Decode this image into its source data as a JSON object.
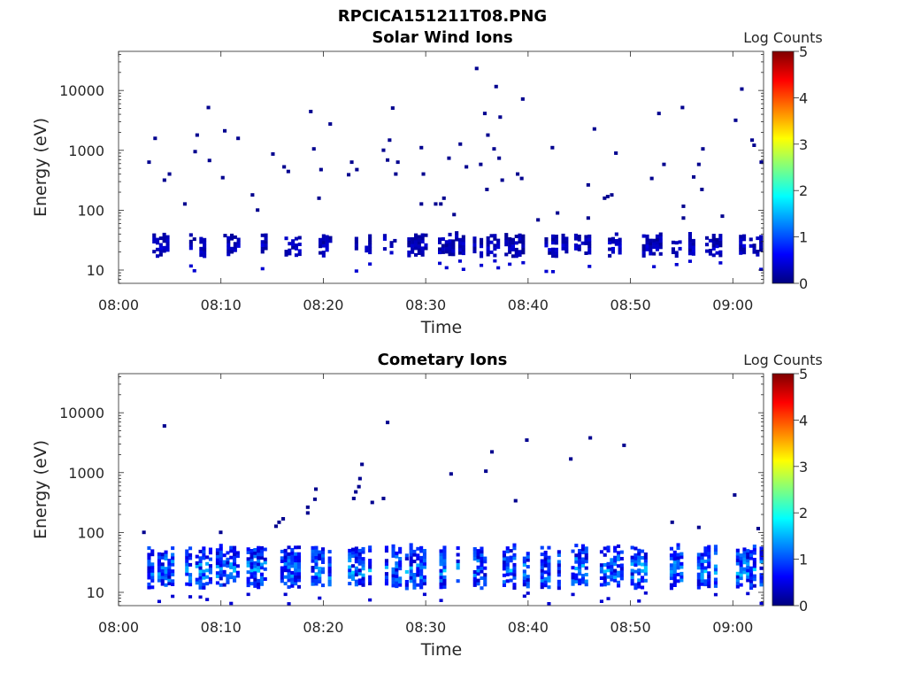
{
  "figure_title": "RPCICA151211T08.PNG",
  "colors": {
    "colormap": [
      "#00007f",
      "#0000ff",
      "#007fff",
      "#00ffff",
      "#7fff7f",
      "#ffff00",
      "#ff7f00",
      "#ff0000",
      "#7f0000"
    ]
  },
  "chart_data": [
    {
      "type": "heatmap",
      "title": "Solar Wind Ions",
      "xlabel": "Time",
      "ylabel": "Energy (eV)",
      "y_scale": "log",
      "xlim": [
        "08:00",
        "09:03"
      ],
      "ylim": [
        6,
        45000
      ],
      "xticks": [
        "08:00",
        "08:10",
        "08:20",
        "08:30",
        "08:40",
        "08:50",
        "09:00"
      ],
      "yticks": [
        "10",
        "100",
        "1000",
        "10000"
      ],
      "colorbar": {
        "label": "Log Counts",
        "range": [
          0,
          5
        ],
        "ticks": [
          "0",
          "1",
          "2",
          "3",
          "4",
          "5"
        ]
      },
      "band": {
        "energy_range": [
          16,
          40
        ],
        "max_log_counts": 0.6,
        "burst_start_minutes": [
          3.3,
          6.9,
          9.9,
          12.9,
          16.2,
          19.2,
          22.4,
          25.5,
          28.2,
          31.2,
          34.6,
          37.7,
          41.6,
          44.5,
          47.8,
          50.8,
          54.0,
          57.3,
          60.6
        ]
      },
      "scatter": {
        "points": [
          [
            2.8,
            600
          ],
          [
            3.4,
            1500
          ],
          [
            4.3,
            300
          ],
          [
            4.8,
            380
          ],
          [
            6.3,
            120
          ],
          [
            7.3,
            900
          ],
          [
            7.5,
            1700
          ],
          [
            8.6,
            4900
          ],
          [
            8.7,
            640
          ],
          [
            10.0,
            330
          ],
          [
            10.2,
            2000
          ],
          [
            11.5,
            1500
          ],
          [
            12.9,
            170
          ],
          [
            13.4,
            95
          ],
          [
            16.0,
            500
          ],
          [
            16.4,
            420
          ],
          [
            18.6,
            4200
          ],
          [
            18.9,
            1000
          ],
          [
            19.4,
            150
          ],
          [
            19.6,
            450
          ],
          [
            20.5,
            2600
          ],
          [
            22.3,
            370
          ],
          [
            22.6,
            600
          ],
          [
            23.1,
            450
          ],
          [
            25.7,
            950
          ],
          [
            26.1,
            650
          ],
          [
            26.3,
            1400
          ],
          [
            26.6,
            4800
          ],
          [
            26.9,
            380
          ],
          [
            29.4,
            1050
          ],
          [
            29.6,
            380
          ],
          [
            29.4,
            120
          ],
          [
            30.8,
            120
          ],
          [
            31.3,
            120
          ],
          [
            31.6,
            150
          ],
          [
            32.1,
            700
          ],
          [
            32.6,
            80
          ],
          [
            33.2,
            1200
          ],
          [
            33.8,
            500
          ],
          [
            34.8,
            22000
          ],
          [
            35.2,
            550
          ],
          [
            35.6,
            3900
          ],
          [
            35.9,
            1700
          ],
          [
            35.8,
            210
          ],
          [
            36.5,
            1000
          ],
          [
            36.7,
            11000
          ],
          [
            37.1,
            3400
          ],
          [
            37.3,
            300
          ],
          [
            37.0,
            700
          ],
          [
            38.8,
            380
          ],
          [
            39.2,
            320
          ],
          [
            39.3,
            6800
          ],
          [
            40.8,
            65
          ],
          [
            42.2,
            1050
          ],
          [
            42.7,
            85
          ],
          [
            45.7,
            70
          ],
          [
            45.7,
            250
          ],
          [
            47.3,
            150
          ],
          [
            47.6,
            160
          ],
          [
            48.0,
            170
          ],
          [
            48.4,
            850
          ],
          [
            51.9,
            320
          ],
          [
            52.6,
            3900
          ],
          [
            53.1,
            550
          ],
          [
            54.9,
            4900
          ],
          [
            55.0,
            110
          ],
          [
            55.0,
            70
          ],
          [
            56.0,
            340
          ],
          [
            56.5,
            550
          ],
          [
            56.8,
            210
          ],
          [
            56.9,
            1000
          ],
          [
            58.8,
            75
          ],
          [
            60.1,
            3000
          ],
          [
            60.7,
            10000
          ],
          [
            61.7,
            1400
          ],
          [
            61.9,
            1150
          ],
          [
            62.6,
            600
          ],
          [
            27.1,
            600
          ],
          [
            14.9,
            820
          ],
          [
            46.3,
            2150
          ]
        ]
      }
    },
    {
      "type": "heatmap",
      "title": "Cometary Ions",
      "xlabel": "Time",
      "ylabel": "Energy (eV)",
      "y_scale": "log",
      "xlim": [
        "08:00",
        "09:03"
      ],
      "ylim": [
        6,
        45000
      ],
      "xticks": [
        "08:00",
        "08:10",
        "08:20",
        "08:30",
        "08:40",
        "08:50",
        "09:00"
      ],
      "yticks": [
        "10",
        "100",
        "1000",
        "10000"
      ],
      "colorbar": {
        "label": "Log Counts",
        "range": [
          0,
          5
        ],
        "ticks": [
          "0",
          "1",
          "2",
          "3",
          "4",
          "5"
        ]
      },
      "band": {
        "energy_range": [
          11,
          60
        ],
        "max_log_counts": 2.0,
        "burst_start_minutes": [
          2.8,
          6.5,
          9.5,
          12.5,
          15.8,
          18.8,
          22.4,
          26.0,
          28.4,
          31.0,
          34.3,
          37.5,
          41.2,
          44.2,
          47.0,
          50.0,
          53.5,
          56.5,
          60.3
        ]
      },
      "scatter": {
        "points": [
          [
            2.3,
            95
          ],
          [
            4.3,
            5700
          ],
          [
            9.8,
            95
          ],
          [
            15.2,
            120
          ],
          [
            15.5,
            140
          ],
          [
            15.9,
            160
          ],
          [
            18.3,
            200
          ],
          [
            18.3,
            250
          ],
          [
            19.0,
            340
          ],
          [
            19.1,
            500
          ],
          [
            22.8,
            350
          ],
          [
            23.0,
            450
          ],
          [
            23.3,
            550
          ],
          [
            23.4,
            750
          ],
          [
            23.6,
            1300
          ],
          [
            24.6,
            300
          ],
          [
            25.7,
            350
          ],
          [
            26.1,
            6500
          ],
          [
            32.3,
            900
          ],
          [
            35.7,
            1000
          ],
          [
            36.3,
            2100
          ],
          [
            38.6,
            320
          ],
          [
            39.7,
            3300
          ],
          [
            44.0,
            1600
          ],
          [
            45.9,
            3600
          ],
          [
            49.2,
            2700
          ],
          [
            53.9,
            140
          ],
          [
            56.5,
            115
          ],
          [
            60.0,
            400
          ],
          [
            62.3,
            110
          ]
        ]
      }
    }
  ]
}
